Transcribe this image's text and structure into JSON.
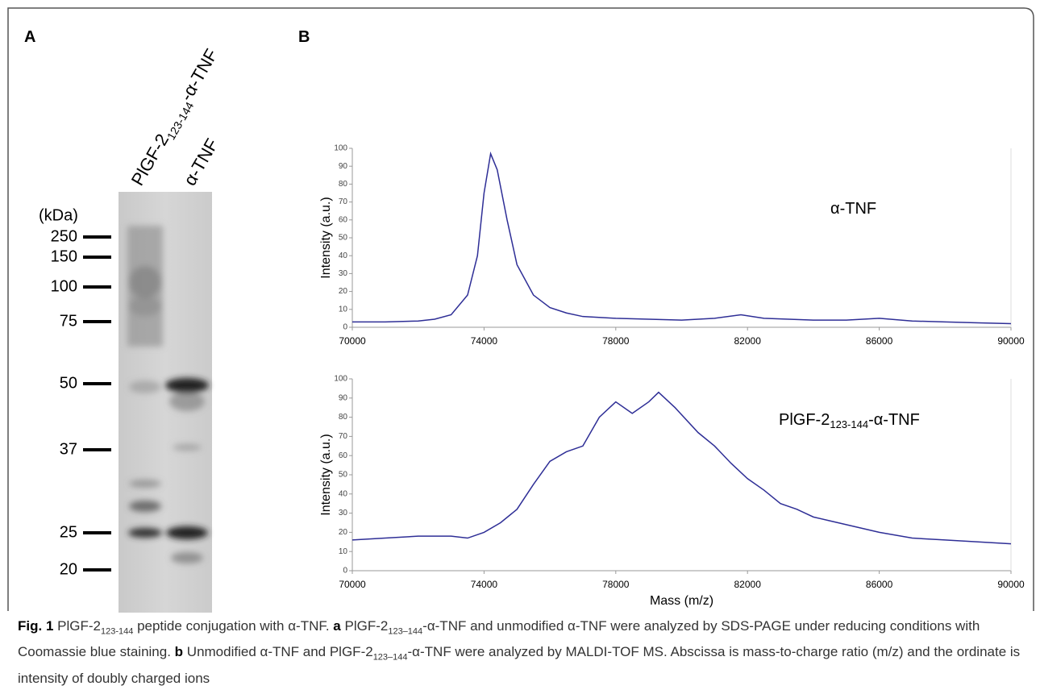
{
  "panel_a": {
    "label": "A",
    "lanes": [
      "PlGF-2",
      "123-144",
      "-α-TNF",
      "α-TNF"
    ],
    "unit": "(kDa)",
    "markers": [
      250,
      150,
      100,
      75,
      50,
      37,
      25,
      20
    ]
  },
  "panel_b": {
    "label": "B"
  },
  "chart_data": [
    {
      "type": "line",
      "annotation": [
        "α-TNF"
      ],
      "ylabel": "Intensity (a.u.)",
      "color": "#2e2e96",
      "x": [
        70000,
        71000,
        72000,
        72500,
        73000,
        73500,
        73800,
        74000,
        74200,
        74400,
        74700,
        75000,
        75500,
        76000,
        76500,
        77000,
        78000,
        79000,
        80000,
        81000,
        81800,
        82500,
        84000,
        85000,
        86000,
        87000,
        88000,
        89000,
        90000
      ],
      "values": [
        3,
        3,
        3.5,
        4.5,
        7,
        18,
        40,
        75,
        97,
        88,
        60,
        35,
        18,
        11,
        8,
        6,
        5,
        4.5,
        4,
        5,
        7,
        5,
        4,
        4,
        5,
        3.5,
        3,
        2.5,
        2
      ],
      "xlim": [
        70000,
        90000
      ],
      "ylim": [
        0,
        100
      ],
      "xticks": [
        70000,
        74000,
        78000,
        82000,
        86000,
        90000
      ],
      "yticks": [
        0,
        10,
        20,
        30,
        40,
        50,
        60,
        70,
        80,
        90,
        100
      ]
    },
    {
      "type": "line",
      "annotation": [
        "PlGF-2",
        "123-144",
        "-α-TNF"
      ],
      "ylabel": "Intensity (a.u.)",
      "xlabel": "Mass (m/z)",
      "color": "#2e2e96",
      "x": [
        70000,
        71000,
        72000,
        73000,
        73500,
        74000,
        74500,
        75000,
        75500,
        76000,
        76500,
        77000,
        77500,
        78000,
        78500,
        79000,
        79300,
        79800,
        80500,
        81000,
        81500,
        82000,
        82500,
        83000,
        83500,
        84000,
        84500,
        85000,
        86000,
        87000,
        88000,
        89000,
        90000
      ],
      "values": [
        16,
        17,
        18,
        18,
        17,
        20,
        25,
        32,
        45,
        57,
        62,
        65,
        80,
        88,
        82,
        88,
        93,
        85,
        72,
        65,
        56,
        48,
        42,
        35,
        32,
        28,
        26,
        24,
        20,
        17,
        16,
        15,
        14
      ],
      "xlim": [
        70000,
        90000
      ],
      "ylim": [
        0,
        100
      ],
      "xticks": [
        70000,
        74000,
        78000,
        82000,
        86000,
        90000
      ],
      "yticks": [
        0,
        10,
        20,
        30,
        40,
        50,
        60,
        70,
        80,
        90,
        100
      ]
    }
  ],
  "caption": [
    "Fig. 1",
    " PlGF-2",
    "123-144",
    " peptide conjugation with α-TNF. ",
    "a",
    " PlGF-2",
    "123–144",
    "-α-TNF and unmodified α-TNF were analyzed by SDS-PAGE under reducing conditions with Coomassie blue staining. ",
    "b",
    " Unmodified α-TNF and PlGF-2",
    "123–144",
    "-α-TNF were analyzed by MALDI-TOF MS. Abscissa is mass-to-charge ratio (m/z) and the ordinate is intensity of doubly charged ions"
  ]
}
